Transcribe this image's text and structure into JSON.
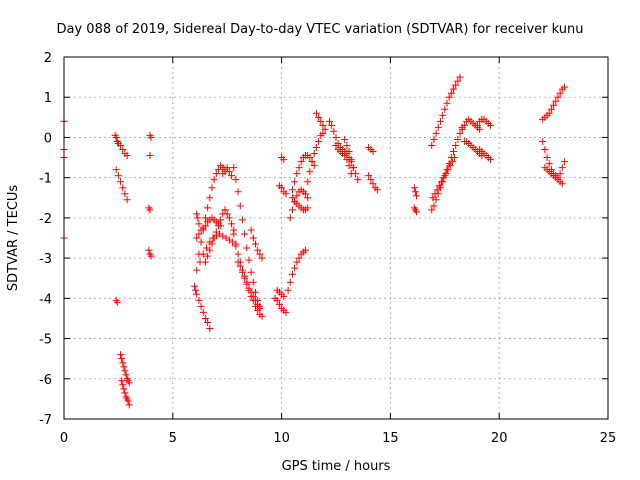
{
  "chart_data": {
    "type": "scatter",
    "title": "Day 088 of 2019, Sidereal Day-to-day VTEC variation (SDTVAR) for receiver kunu",
    "xlabel": "GPS time / hours",
    "ylabel": "SDTVAR / TECUs",
    "xlim": [
      0,
      25
    ],
    "ylim": [
      -7,
      2
    ],
    "xticks": [
      0,
      5,
      10,
      15,
      20,
      25
    ],
    "yticks": [
      -7,
      -6,
      -5,
      -4,
      -3,
      -2,
      -1,
      0,
      1,
      2
    ],
    "xtick_labels": [
      "0",
      "5",
      "10",
      "15",
      "20",
      "25"
    ],
    "ytick_labels": [
      "-7",
      "-6",
      "-5",
      "-4",
      "-3",
      "-2",
      "-1",
      "0",
      "1",
      "2"
    ],
    "grid": true,
    "marker": "+",
    "color": "#ff0000",
    "segments": [
      {
        "x": [
          0.0,
          0.0,
          0.0,
          0.0
        ],
        "y": [
          0.4,
          -0.3,
          -0.5,
          -2.5
        ]
      },
      {
        "x": [
          2.35,
          2.4,
          2.45
        ],
        "y": [
          0.05,
          0.0,
          -0.1
        ]
      },
      {
        "x": [
          2.4,
          2.5,
          2.6,
          2.7,
          2.8,
          2.9
        ],
        "y": [
          -0.8,
          -0.95,
          -1.1,
          -1.25,
          -1.4,
          -1.55
        ]
      },
      {
        "x": [
          2.5,
          2.6,
          2.7,
          2.8,
          2.9
        ],
        "y": [
          -0.15,
          -0.2,
          -0.3,
          -0.4,
          -0.45
        ]
      },
      {
        "x": [
          2.4,
          2.45
        ],
        "y": [
          -4.05,
          -4.1
        ]
      },
      {
        "x": [
          2.6,
          2.65,
          2.7,
          2.75,
          2.8,
          2.85,
          2.9,
          2.95,
          3.0
        ],
        "y": [
          -5.4,
          -5.5,
          -5.6,
          -5.7,
          -5.8,
          -5.9,
          -6.0,
          -6.05,
          -6.1
        ]
      },
      {
        "x": [
          2.65,
          2.7,
          2.75,
          2.8,
          2.85,
          2.9,
          2.95,
          3.0
        ],
        "y": [
          -6.05,
          -6.15,
          -6.25,
          -6.35,
          -6.45,
          -6.5,
          -6.55,
          -6.65
        ]
      },
      {
        "x": [
          3.95,
          4.0
        ],
        "y": [
          0.05,
          0.0
        ]
      },
      {
        "x": [
          3.95
        ],
        "y": [
          -0.45
        ]
      },
      {
        "x": [
          3.9,
          3.95
        ],
        "y": [
          -1.75,
          -1.8
        ]
      },
      {
        "x": [
          3.9,
          3.95,
          4.0
        ],
        "y": [
          -2.8,
          -2.9,
          -2.95
        ]
      },
      {
        "x": [
          6.1,
          6.2,
          6.3,
          6.4,
          6.5,
          6.6,
          6.7,
          6.8,
          6.9,
          7.0,
          7.1,
          7.2
        ],
        "y": [
          -2.5,
          -2.4,
          -2.3,
          -2.25,
          -2.2,
          -2.1,
          -2.05,
          -2.0,
          -2.05,
          -2.1,
          -2.15,
          -2.2
        ]
      },
      {
        "x": [
          6.2,
          6.3,
          6.4,
          6.5,
          6.6,
          6.7,
          6.8,
          6.9,
          7.0,
          7.1,
          7.2,
          7.3,
          7.4
        ],
        "y": [
          -2.9,
          -2.6,
          -2.3,
          -2.0,
          -1.75,
          -1.5,
          -1.25,
          -1.05,
          -0.9,
          -0.8,
          -0.7,
          -0.75,
          -0.85
        ]
      },
      {
        "x": [
          6.1,
          6.25,
          6.4,
          6.55,
          6.7,
          6.85,
          7.0,
          7.15,
          7.3,
          7.45,
          7.6,
          7.75,
          7.9
        ],
        "y": [
          -3.3,
          -3.1,
          -2.9,
          -2.75,
          -2.6,
          -2.5,
          -2.45,
          -2.4,
          -2.45,
          -2.5,
          -2.55,
          -2.6,
          -2.7
        ]
      },
      {
        "x": [
          6.1,
          6.15,
          6.2
        ],
        "y": [
          -1.9,
          -2.0,
          -2.15
        ]
      },
      {
        "x": [
          6.0,
          6.05,
          6.1,
          6.2,
          6.3,
          6.4,
          6.5,
          6.6,
          6.7
        ],
        "y": [
          -3.7,
          -3.8,
          -3.9,
          -4.05,
          -4.2,
          -4.35,
          -4.5,
          -4.6,
          -4.75
        ]
      },
      {
        "x": [
          6.5,
          6.6,
          6.7,
          6.8,
          6.9,
          7.0,
          7.1,
          7.2,
          7.3,
          7.4
        ],
        "y": [
          -3.1,
          -2.95,
          -2.8,
          -2.65,
          -2.5,
          -2.35,
          -2.2,
          -2.05,
          -1.9,
          -1.8
        ]
      },
      {
        "x": [
          7.3,
          7.4,
          7.5,
          7.6,
          7.7
        ],
        "y": [
          -0.9,
          -0.8,
          -0.75,
          -0.85,
          -0.95
        ]
      },
      {
        "x": [
          7.4,
          7.5,
          7.6,
          7.7,
          7.8
        ],
        "y": [
          -1.8,
          -1.9,
          -2.0,
          -2.15,
          -2.3
        ]
      },
      {
        "x": [
          7.8,
          7.9,
          8.0,
          8.1,
          8.2,
          8.3,
          8.4,
          8.5,
          8.6,
          8.7,
          8.8,
          8.9,
          9.0
        ],
        "y": [
          -0.75,
          -1.05,
          -1.35,
          -1.7,
          -2.05,
          -2.4,
          -2.75,
          -3.05,
          -3.35,
          -3.6,
          -3.85,
          -4.05,
          -4.2
        ]
      },
      {
        "x": [
          7.8,
          7.9,
          8.0,
          8.1,
          8.2,
          8.3,
          8.4,
          8.5,
          8.6,
          8.7,
          8.8,
          8.9,
          9.0
        ],
        "y": [
          -2.4,
          -2.65,
          -2.9,
          -3.1,
          -3.3,
          -3.45,
          -3.6,
          -3.75,
          -3.85,
          -3.95,
          -4.05,
          -4.15,
          -4.25
        ]
      },
      {
        "x": [
          8.0,
          8.1,
          8.2,
          8.3,
          8.4,
          8.5,
          8.6,
          8.7,
          8.8,
          8.9,
          9.0,
          9.1
        ],
        "y": [
          -3.1,
          -3.2,
          -3.35,
          -3.5,
          -3.65,
          -3.8,
          -3.95,
          -4.05,
          -4.2,
          -4.3,
          -4.4,
          -4.45
        ]
      },
      {
        "x": [
          8.6,
          8.7,
          8.8,
          8.9,
          9.0,
          9.1
        ],
        "y": [
          -2.3,
          -2.5,
          -2.65,
          -2.8,
          -2.9,
          -3.0
        ]
      },
      {
        "x": [
          9.7,
          9.8,
          9.9,
          10.0,
          10.1,
          10.2
        ],
        "y": [
          -4.0,
          -4.05,
          -4.15,
          -4.25,
          -4.3,
          -4.35
        ]
      },
      {
        "x": [
          9.8,
          9.9,
          10.0,
          10.1
        ],
        "y": [
          -3.8,
          -3.85,
          -3.9,
          -3.95
        ]
      },
      {
        "x": [
          9.9,
          10.0,
          10.1,
          10.2
        ],
        "y": [
          -1.2,
          -1.25,
          -1.35,
          -1.4
        ]
      },
      {
        "x": [
          10.0,
          10.1
        ],
        "y": [
          -0.5,
          -0.55
        ]
      },
      {
        "x": [
          10.4,
          10.5,
          10.6,
          10.7,
          10.8,
          10.9,
          11.0,
          11.1,
          11.2
        ],
        "y": [
          -2.0,
          -1.8,
          -1.6,
          -1.45,
          -1.35,
          -1.3,
          -1.35,
          -1.4,
          -1.5
        ]
      },
      {
        "x": [
          10.5,
          10.6,
          10.7,
          10.8,
          10.9,
          11.0,
          11.1,
          11.2,
          11.3,
          11.4,
          11.5
        ],
        "y": [
          -1.3,
          -1.1,
          -0.9,
          -0.75,
          -0.6,
          -0.5,
          -0.45,
          -0.45,
          -0.5,
          -0.6,
          -0.7
        ]
      },
      {
        "x": [
          10.3,
          10.4,
          10.5,
          10.6,
          10.7,
          10.8,
          10.9,
          11.0,
          11.1
        ],
        "y": [
          -3.8,
          -3.6,
          -3.4,
          -3.25,
          -3.1,
          -3.0,
          -2.9,
          -2.85,
          -2.8
        ]
      },
      {
        "x": [
          10.5,
          10.6,
          10.7,
          10.8,
          10.9,
          11.0,
          11.1,
          11.2
        ],
        "y": [
          -1.5,
          -1.6,
          -1.65,
          -1.7,
          -1.75,
          -1.8,
          -1.8,
          -1.75
        ]
      },
      {
        "x": [
          11.2,
          11.3,
          11.4,
          11.5,
          11.6,
          11.7,
          11.8,
          11.9
        ],
        "y": [
          -1.1,
          -0.85,
          -0.6,
          -0.4,
          -0.25,
          -0.1,
          0.05,
          0.1
        ]
      },
      {
        "x": [
          11.6,
          11.7,
          11.8,
          11.9,
          12.0
        ],
        "y": [
          0.6,
          0.5,
          0.4,
          0.3,
          0.2
        ]
      },
      {
        "x": [
          12.2,
          12.3,
          12.4,
          12.5,
          12.6,
          12.7,
          12.8,
          12.9,
          13.0
        ],
        "y": [
          0.4,
          0.3,
          0.15,
          0.0,
          -0.15,
          -0.25,
          -0.3,
          -0.35,
          -0.4
        ]
      },
      {
        "x": [
          12.5,
          12.6,
          12.7,
          12.8,
          12.9,
          13.0,
          13.1,
          13.2
        ],
        "y": [
          -0.2,
          -0.3,
          -0.35,
          -0.4,
          -0.45,
          -0.55,
          -0.7,
          -0.9
        ]
      },
      {
        "x": [
          12.9,
          13.0,
          13.1,
          13.2,
          13.3
        ],
        "y": [
          -0.05,
          -0.2,
          -0.35,
          -0.55,
          -0.75
        ]
      },
      {
        "x": [
          13.0,
          13.1,
          13.2,
          13.3,
          13.4,
          13.5
        ],
        "y": [
          -0.4,
          -0.5,
          -0.6,
          -0.75,
          -0.9,
          -1.05
        ]
      },
      {
        "x": [
          14.0,
          14.1,
          14.2
        ],
        "y": [
          -0.25,
          -0.3,
          -0.35
        ]
      },
      {
        "x": [
          14.0,
          14.1,
          14.2,
          14.3,
          14.4
        ],
        "y": [
          -0.95,
          -1.05,
          -1.15,
          -1.25,
          -1.3
        ]
      },
      {
        "x": [
          16.1,
          16.15,
          16.2
        ],
        "y": [
          -1.25,
          -1.35,
          -1.45
        ]
      },
      {
        "x": [
          16.1,
          16.15,
          16.2
        ],
        "y": [
          -1.75,
          -1.8,
          -1.85
        ]
      },
      {
        "x": [
          16.9,
          17.0,
          17.1,
          17.2,
          17.3,
          17.4,
          17.5,
          17.6,
          17.7,
          17.8,
          17.9,
          18.0,
          18.1,
          18.2
        ],
        "y": [
          -0.2,
          -0.05,
          0.1,
          0.25,
          0.4,
          0.55,
          0.7,
          0.85,
          1.0,
          1.1,
          1.2,
          1.3,
          1.4,
          1.5
        ]
      },
      {
        "x": [
          16.9,
          17.0,
          17.1,
          17.2,
          17.3,
          17.4,
          17.5,
          17.6,
          17.7,
          17.8,
          17.9,
          18.0,
          18.1,
          18.2,
          18.3
        ],
        "y": [
          -1.8,
          -1.7,
          -1.55,
          -1.4,
          -1.25,
          -1.1,
          -0.95,
          -0.8,
          -0.65,
          -0.5,
          -0.35,
          -0.2,
          -0.05,
          0.1,
          0.25
        ]
      },
      {
        "x": [
          16.95,
          17.05,
          17.15,
          17.25,
          17.35,
          17.45,
          17.55,
          17.65,
          17.75,
          17.85,
          17.95
        ],
        "y": [
          -1.5,
          -1.4,
          -1.3,
          -1.2,
          -1.1,
          -1.0,
          -0.9,
          -0.8,
          -0.7,
          -0.6,
          -0.5
        ]
      },
      {
        "x": [
          18.3,
          18.4,
          18.5,
          18.6,
          18.7,
          18.8,
          18.9,
          19.0,
          19.1
        ],
        "y": [
          0.2,
          0.3,
          0.4,
          0.45,
          0.4,
          0.35,
          0.3,
          0.25,
          0.2
        ]
      },
      {
        "x": [
          18.4,
          18.5,
          18.6,
          18.7,
          18.8,
          18.9,
          19.0,
          19.1,
          19.2
        ],
        "y": [
          -0.1,
          -0.1,
          -0.15,
          -0.2,
          -0.25,
          -0.3,
          -0.35,
          -0.4,
          -0.45
        ]
      },
      {
        "x": [
          19.0,
          19.1,
          19.2,
          19.3,
          19.4,
          19.5,
          19.6
        ],
        "y": [
          0.3,
          0.4,
          0.45,
          0.45,
          0.4,
          0.35,
          0.3
        ]
      },
      {
        "x": [
          19.1,
          19.2,
          19.3,
          19.4,
          19.5,
          19.6
        ],
        "y": [
          -0.3,
          -0.35,
          -0.4,
          -0.45,
          -0.5,
          -0.55
        ]
      },
      {
        "x": [
          22.0,
          22.1,
          22.2,
          22.3,
          22.4,
          22.5,
          22.6,
          22.7,
          22.8,
          22.9,
          23.0
        ],
        "y": [
          0.45,
          0.5,
          0.55,
          0.6,
          0.7,
          0.8,
          0.9,
          1.0,
          1.1,
          1.2,
          1.25
        ]
      },
      {
        "x": [
          22.0,
          22.1,
          22.2,
          22.3,
          22.4,
          22.5,
          22.6,
          22.7
        ],
        "y": [
          -0.1,
          -0.3,
          -0.5,
          -0.65,
          -0.8,
          -0.9,
          -0.95,
          -1.0
        ]
      },
      {
        "x": [
          22.1,
          22.2,
          22.3,
          22.4,
          22.5,
          22.6,
          22.7,
          22.8,
          22.9
        ],
        "y": [
          -0.75,
          -0.8,
          -0.85,
          -0.9,
          -0.95,
          -1.0,
          -1.05,
          -1.1,
          -1.15
        ]
      },
      {
        "x": [
          22.8,
          22.9,
          23.0
        ],
        "y": [
          -0.9,
          -0.75,
          -0.6
        ]
      }
    ]
  }
}
